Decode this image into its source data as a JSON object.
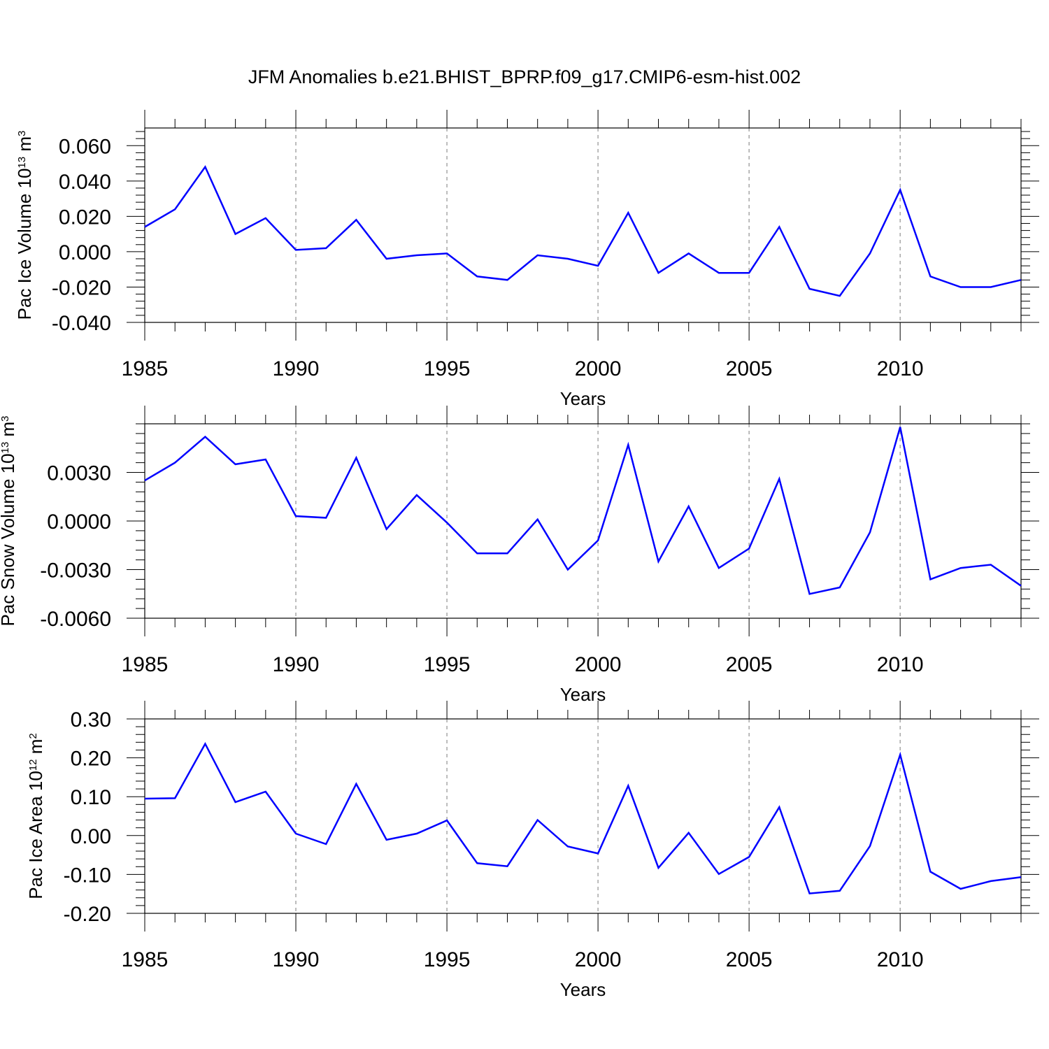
{
  "title": "JFM Anomalies b.e21.BHIST_BPRP.f09_g17.CMIP6-esm-hist.002",
  "line_color": "#0000ff",
  "chart_data": [
    {
      "type": "line",
      "xlabel": "Years",
      "ylabel": {
        "pre": "Pac Ice Volume 10",
        "sup": "13",
        "mid": " m",
        "sup2": "3"
      },
      "xlim": [
        1985,
        2014
      ],
      "ylim": [
        -0.04,
        0.07
      ],
      "xticks": [
        1985,
        1990,
        1995,
        2000,
        2005,
        2010
      ],
      "xtick_labels": [
        "1985",
        "1990",
        "1995",
        "2000",
        "2005",
        "2010"
      ],
      "yticks": [
        -0.04,
        -0.02,
        0.0,
        0.02,
        0.04,
        0.06
      ],
      "ytick_labels": [
        "-0.040",
        "-0.020",
        "0.000",
        "0.020",
        "0.040",
        "0.060"
      ],
      "grid": "vertical dashed at major x ticks",
      "x": [
        1985,
        1986,
        1987,
        1988,
        1989,
        1990,
        1991,
        1992,
        1993,
        1994,
        1995,
        1996,
        1997,
        1998,
        1999,
        2000,
        2001,
        2002,
        2003,
        2004,
        2005,
        2006,
        2007,
        2008,
        2009,
        2010,
        2011,
        2012,
        2013,
        2014
      ],
      "values": [
        0.014,
        0.024,
        0.048,
        0.01,
        0.019,
        0.001,
        0.002,
        0.018,
        -0.004,
        -0.002,
        -0.001,
        -0.014,
        -0.016,
        -0.002,
        -0.004,
        -0.008,
        0.022,
        -0.012,
        -0.001,
        -0.012,
        -0.012,
        0.014,
        -0.021,
        -0.025,
        -0.001,
        0.035,
        -0.014,
        -0.02,
        -0.02,
        -0.016
      ]
    },
    {
      "type": "line",
      "xlabel": "Years",
      "ylabel": {
        "pre": "Pac Snow Volume 10",
        "sup": "13",
        "mid": " m",
        "sup2": "3"
      },
      "xlim": [
        1985,
        2014
      ],
      "ylim": [
        -0.006,
        0.006
      ],
      "xticks": [
        1985,
        1990,
        1995,
        2000,
        2005,
        2010
      ],
      "xtick_labels": [
        "1985",
        "1990",
        "1995",
        "2000",
        "2005",
        "2010"
      ],
      "yticks": [
        -0.006,
        -0.003,
        0.0,
        0.003
      ],
      "ytick_labels": [
        "-0.0060",
        "-0.0030",
        "0.0000",
        "0.0030"
      ],
      "grid": "vertical dashed at major x ticks",
      "x": [
        1985,
        1986,
        1987,
        1988,
        1989,
        1990,
        1991,
        1992,
        1993,
        1994,
        1995,
        1996,
        1997,
        1998,
        1999,
        2000,
        2001,
        2002,
        2003,
        2004,
        2005,
        2006,
        2007,
        2008,
        2009,
        2010,
        2011,
        2012,
        2013,
        2014
      ],
      "values": [
        0.0025,
        0.0036,
        0.0052,
        0.0035,
        0.0038,
        0.0003,
        0.0002,
        0.0039,
        -0.0005,
        0.0016,
        -0.0001,
        -0.002,
        -0.002,
        0.0001,
        -0.003,
        -0.0012,
        0.0047,
        -0.0025,
        0.0009,
        -0.0029,
        -0.0017,
        0.0026,
        -0.0045,
        -0.0041,
        -0.0007,
        0.0058,
        -0.0036,
        -0.0029,
        -0.0027,
        -0.004
      ]
    },
    {
      "type": "line",
      "xlabel": "Years",
      "ylabel": {
        "pre": "Pac Ice Area 10",
        "sup": "12",
        "mid": " m",
        "sup2": "2"
      },
      "xlim": [
        1985,
        2014
      ],
      "ylim": [
        -0.2,
        0.3
      ],
      "xticks": [
        1985,
        1990,
        1995,
        2000,
        2005,
        2010
      ],
      "xtick_labels": [
        "1985",
        "1990",
        "1995",
        "2000",
        "2005",
        "2010"
      ],
      "yticks": [
        -0.2,
        -0.1,
        0.0,
        0.1,
        0.2,
        0.3
      ],
      "ytick_labels": [
        "-0.20",
        "-0.10",
        "0.00",
        "0.10",
        "0.20",
        "0.30"
      ],
      "grid": "vertical dashed at major x ticks",
      "x": [
        1985,
        1986,
        1987,
        1988,
        1989,
        1990,
        1991,
        1992,
        1993,
        1994,
        1995,
        1996,
        1997,
        1998,
        1999,
        2000,
        2001,
        2002,
        2003,
        2004,
        2005,
        2006,
        2007,
        2008,
        2009,
        2010,
        2011,
        2012,
        2013,
        2014
      ],
      "values": [
        0.095,
        0.096,
        0.236,
        0.086,
        0.113,
        0.005,
        -0.022,
        0.133,
        -0.011,
        0.005,
        0.039,
        -0.071,
        -0.079,
        0.04,
        -0.028,
        -0.046,
        0.128,
        -0.083,
        0.007,
        -0.099,
        -0.055,
        0.073,
        -0.149,
        -0.142,
        -0.027,
        0.208,
        -0.093,
        -0.137,
        -0.117,
        -0.107
      ]
    }
  ]
}
